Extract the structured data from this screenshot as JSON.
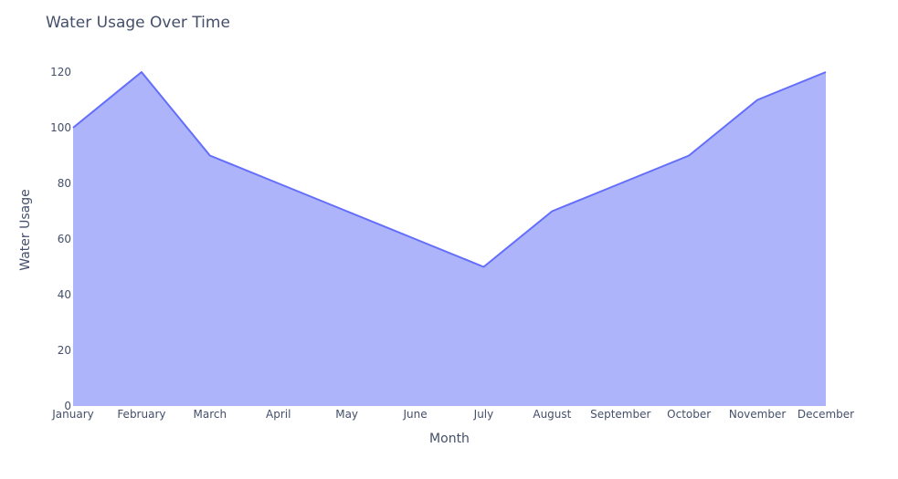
{
  "chart_data": {
    "type": "area",
    "title": "Water Usage Over Time",
    "xlabel": "Month",
    "ylabel": "Water Usage",
    "categories": [
      "January",
      "February",
      "March",
      "April",
      "May",
      "June",
      "July",
      "August",
      "September",
      "October",
      "November",
      "December"
    ],
    "values": [
      100,
      120,
      90,
      80,
      70,
      60,
      50,
      70,
      80,
      90,
      110,
      120
    ],
    "ylim": [
      0,
      120
    ],
    "yticks": [
      "0",
      "20",
      "40",
      "60",
      "80",
      "100",
      "120"
    ],
    "grid": false,
    "legend": "none",
    "colors": {
      "line": "#636efa",
      "fill": "#aeb4fa",
      "text": "#444f6a"
    }
  }
}
